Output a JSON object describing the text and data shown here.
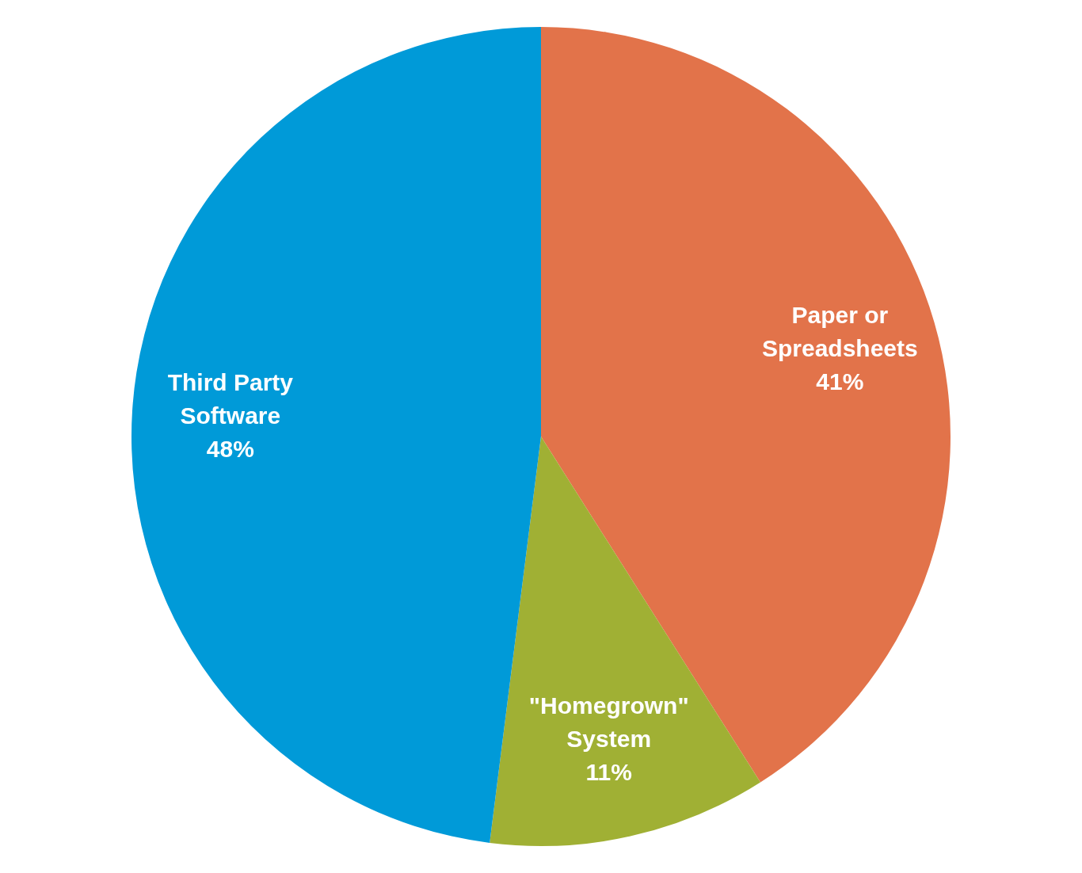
{
  "chart_data": {
    "type": "pie",
    "categories": [
      "Paper or Spreadsheets",
      "\"Homegrown\" System",
      "Third Party Software"
    ],
    "values": [
      41,
      11,
      48
    ],
    "colors": [
      "#e2734a",
      "#a0b034",
      "#009ad8"
    ],
    "value_labels": [
      "41%",
      "11%",
      "48%"
    ],
    "legend": false
  }
}
